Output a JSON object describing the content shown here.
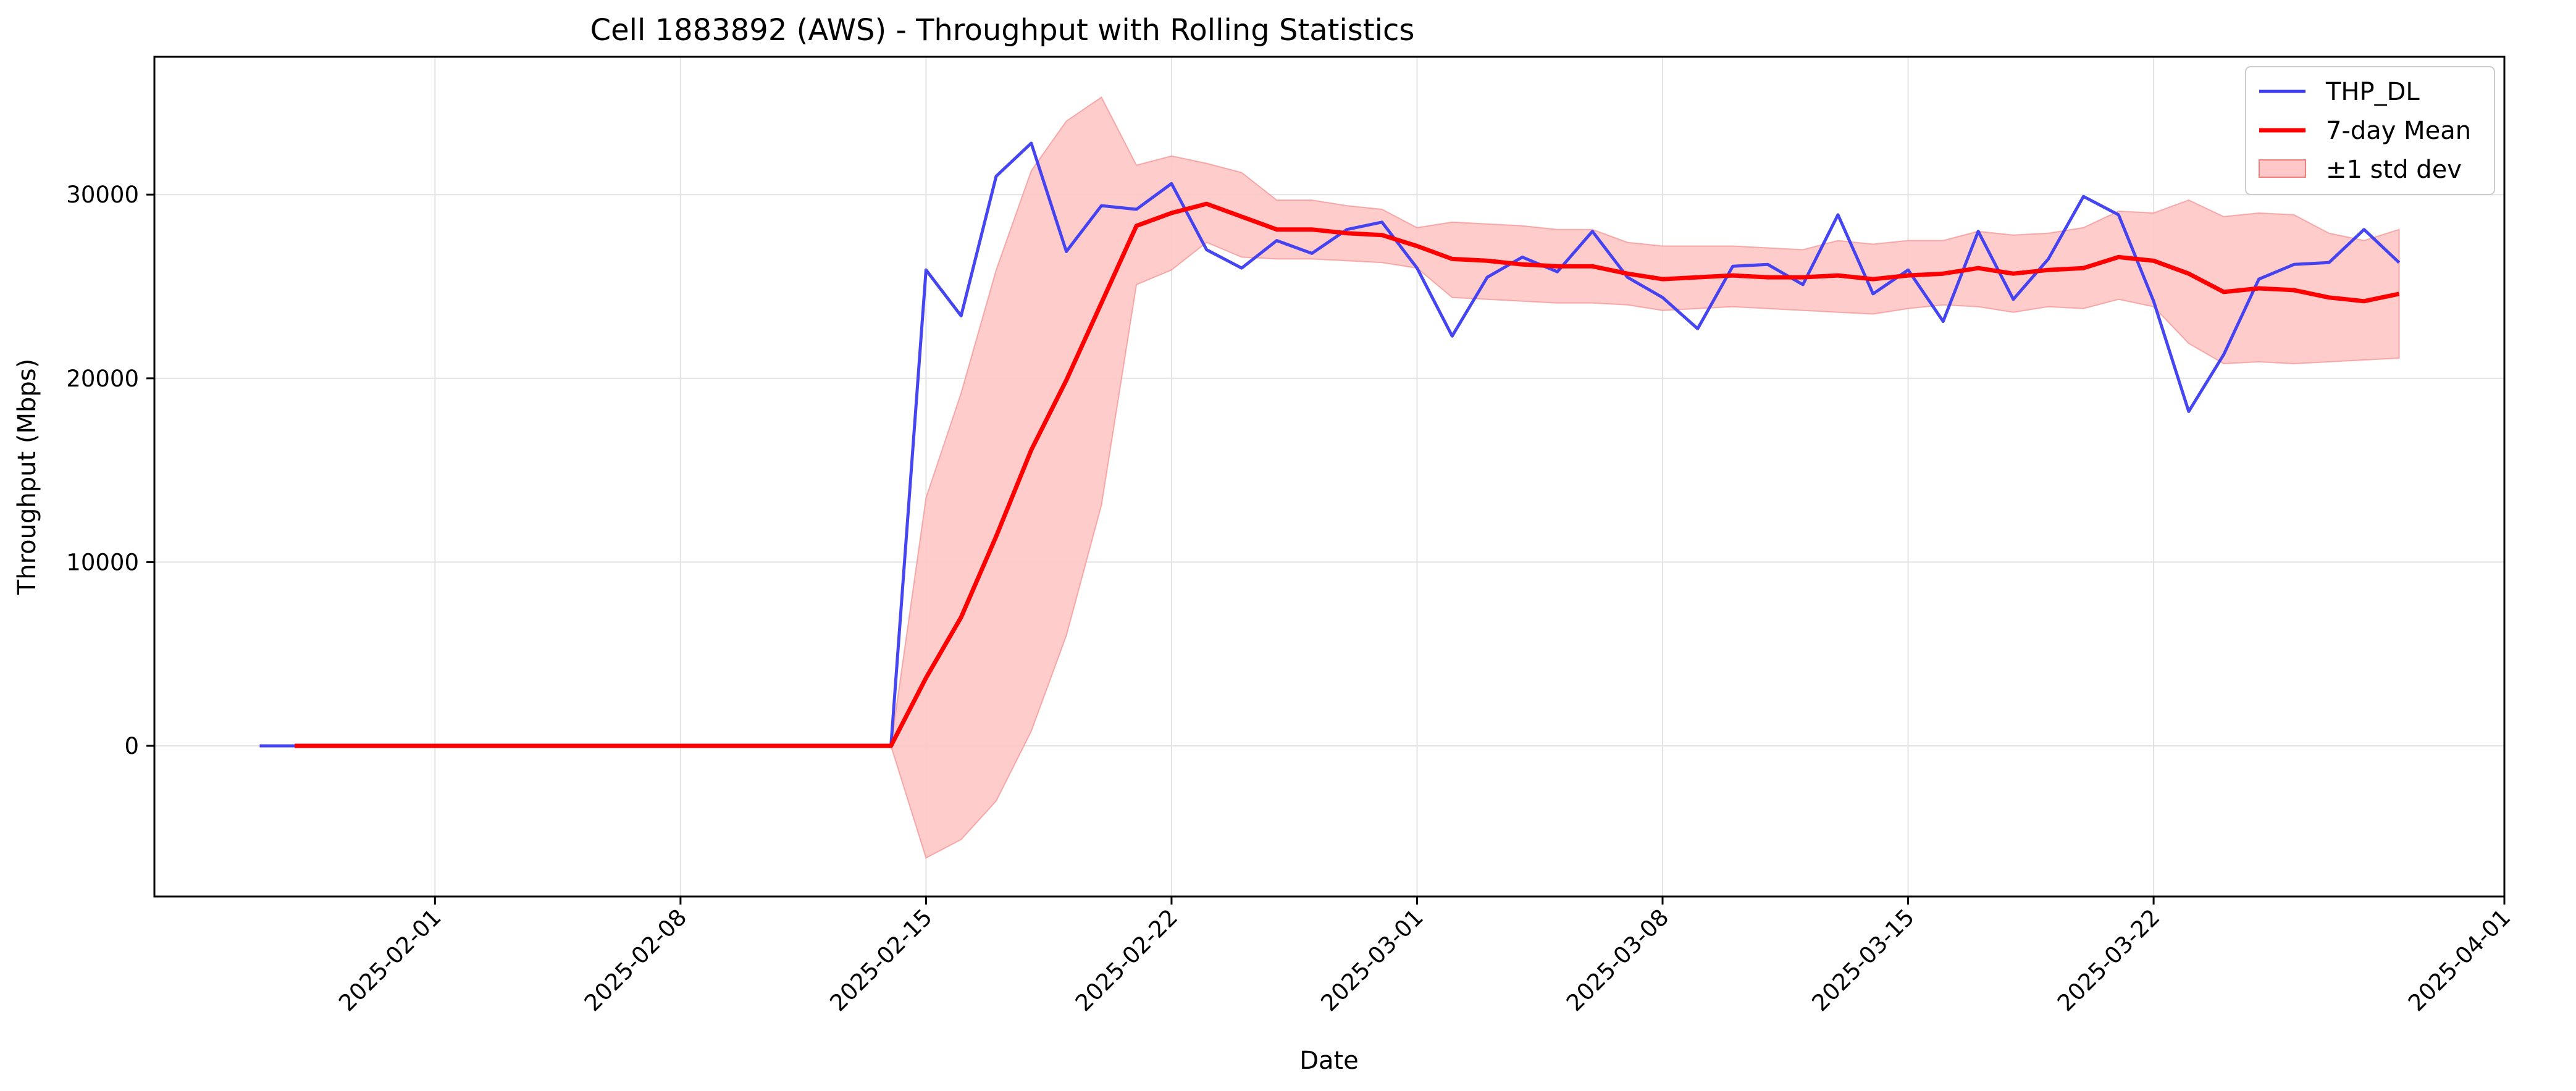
{
  "chart_data": {
    "type": "line",
    "title": "Cell 1883892 (AWS) - Throughput with Rolling Statistics",
    "xlabel": "Date",
    "ylabel": "Throughput (Mbps)",
    "xlim": [
      "2025-01-24",
      "2025-04-01"
    ],
    "ylim": [
      -8200,
      37500
    ],
    "grid": true,
    "legend_position": "top-right",
    "x_ticks": [
      "2025-02-01",
      "2025-02-08",
      "2025-02-15",
      "2025-02-22",
      "2025-03-01",
      "2025-03-08",
      "2025-03-15",
      "2025-03-22",
      "2025-04-01"
    ],
    "y_ticks": [
      0,
      10000,
      20000,
      30000
    ],
    "colors": {
      "THP_DL": "#3b3bf0",
      "mean": "#ff0000",
      "band_fill": "#ffc7c7",
      "band_edge": "#f08080",
      "grid": "#e3e3e3"
    },
    "series": [
      {
        "name": "THP_DL",
        "role": "line",
        "points": [
          [
            "2025-01-27",
            0
          ],
          [
            "2025-01-28",
            0
          ],
          [
            "2025-01-29",
            0
          ],
          [
            "2025-01-30",
            0
          ],
          [
            "2025-01-31",
            0
          ],
          [
            "2025-02-01",
            0
          ],
          [
            "2025-02-02",
            0
          ],
          [
            "2025-02-03",
            0
          ],
          [
            "2025-02-04",
            0
          ],
          [
            "2025-02-05",
            0
          ],
          [
            "2025-02-06",
            0
          ],
          [
            "2025-02-07",
            0
          ],
          [
            "2025-02-08",
            0
          ],
          [
            "2025-02-09",
            0
          ],
          [
            "2025-02-10",
            0
          ],
          [
            "2025-02-11",
            0
          ],
          [
            "2025-02-12",
            0
          ],
          [
            "2025-02-13",
            0
          ],
          [
            "2025-02-14",
            0
          ],
          [
            "2025-02-15",
            25900
          ],
          [
            "2025-02-16",
            23400
          ],
          [
            "2025-02-17",
            31000
          ],
          [
            "2025-02-18",
            32800
          ],
          [
            "2025-02-19",
            26900
          ],
          [
            "2025-02-20",
            29400
          ],
          [
            "2025-02-21",
            29200
          ],
          [
            "2025-02-22",
            30600
          ],
          [
            "2025-02-23",
            27000
          ],
          [
            "2025-02-24",
            26000
          ],
          [
            "2025-02-25",
            27500
          ],
          [
            "2025-02-26",
            26800
          ],
          [
            "2025-02-27",
            28100
          ],
          [
            "2025-02-28",
            28500
          ],
          [
            "2025-03-01",
            26000
          ],
          [
            "2025-03-02",
            22300
          ],
          [
            "2025-03-03",
            25500
          ],
          [
            "2025-03-04",
            26600
          ],
          [
            "2025-03-05",
            25800
          ],
          [
            "2025-03-06",
            28000
          ],
          [
            "2025-03-07",
            25500
          ],
          [
            "2025-03-08",
            24400
          ],
          [
            "2025-03-09",
            22700
          ],
          [
            "2025-03-10",
            26100
          ],
          [
            "2025-03-11",
            26200
          ],
          [
            "2025-03-12",
            25100
          ],
          [
            "2025-03-13",
            28900
          ],
          [
            "2025-03-14",
            24600
          ],
          [
            "2025-03-15",
            25900
          ],
          [
            "2025-03-16",
            23100
          ],
          [
            "2025-03-17",
            28000
          ],
          [
            "2025-03-18",
            24300
          ],
          [
            "2025-03-19",
            26500
          ],
          [
            "2025-03-20",
            29900
          ],
          [
            "2025-03-21",
            28900
          ],
          [
            "2025-03-22",
            24200
          ],
          [
            "2025-03-23",
            18200
          ],
          [
            "2025-03-24",
            21300
          ],
          [
            "2025-03-25",
            25400
          ],
          [
            "2025-03-26",
            26200
          ],
          [
            "2025-03-27",
            26300
          ],
          [
            "2025-03-28",
            28100
          ],
          [
            "2025-03-29",
            26300
          ]
        ]
      },
      {
        "name": "7-day Mean",
        "role": "line",
        "points": [
          [
            "2025-01-28",
            0
          ],
          [
            "2025-01-29",
            0
          ],
          [
            "2025-01-30",
            0
          ],
          [
            "2025-01-31",
            0
          ],
          [
            "2025-02-01",
            0
          ],
          [
            "2025-02-02",
            0
          ],
          [
            "2025-02-03",
            0
          ],
          [
            "2025-02-04",
            0
          ],
          [
            "2025-02-05",
            0
          ],
          [
            "2025-02-06",
            0
          ],
          [
            "2025-02-07",
            0
          ],
          [
            "2025-02-08",
            0
          ],
          [
            "2025-02-09",
            0
          ],
          [
            "2025-02-10",
            0
          ],
          [
            "2025-02-11",
            0
          ],
          [
            "2025-02-12",
            0
          ],
          [
            "2025-02-13",
            0
          ],
          [
            "2025-02-14",
            0
          ],
          [
            "2025-02-15",
            3700
          ],
          [
            "2025-02-16",
            7000
          ],
          [
            "2025-02-17",
            11400
          ],
          [
            "2025-02-18",
            16100
          ],
          [
            "2025-02-19",
            19900
          ],
          [
            "2025-02-20",
            24100
          ],
          [
            "2025-02-21",
            28300
          ],
          [
            "2025-02-22",
            29000
          ],
          [
            "2025-02-23",
            29500
          ],
          [
            "2025-02-24",
            28800
          ],
          [
            "2025-02-25",
            28100
          ],
          [
            "2025-02-26",
            28100
          ],
          [
            "2025-02-27",
            27900
          ],
          [
            "2025-02-28",
            27800
          ],
          [
            "2025-03-01",
            27200
          ],
          [
            "2025-03-02",
            26500
          ],
          [
            "2025-03-03",
            26400
          ],
          [
            "2025-03-04",
            26200
          ],
          [
            "2025-03-05",
            26100
          ],
          [
            "2025-03-06",
            26100
          ],
          [
            "2025-03-07",
            25700
          ],
          [
            "2025-03-08",
            25400
          ],
          [
            "2025-03-09",
            25500
          ],
          [
            "2025-03-10",
            25600
          ],
          [
            "2025-03-11",
            25500
          ],
          [
            "2025-03-12",
            25500
          ],
          [
            "2025-03-13",
            25600
          ],
          [
            "2025-03-14",
            25400
          ],
          [
            "2025-03-15",
            25600
          ],
          [
            "2025-03-16",
            25700
          ],
          [
            "2025-03-17",
            26000
          ],
          [
            "2025-03-18",
            25700
          ],
          [
            "2025-03-19",
            25900
          ],
          [
            "2025-03-20",
            26000
          ],
          [
            "2025-03-21",
            26600
          ],
          [
            "2025-03-22",
            26400
          ],
          [
            "2025-03-23",
            25700
          ],
          [
            "2025-03-24",
            24700
          ],
          [
            "2025-03-25",
            24900
          ],
          [
            "2025-03-26",
            24800
          ],
          [
            "2025-03-27",
            24400
          ],
          [
            "2025-03-28",
            24200
          ],
          [
            "2025-03-29",
            24600
          ]
        ]
      },
      {
        "name": "±1 std dev",
        "role": "band",
        "points": [
          [
            "2025-02-14",
            0,
            0
          ],
          [
            "2025-02-15",
            -6100,
            13500
          ],
          [
            "2025-02-16",
            -5100,
            19200
          ],
          [
            "2025-02-17",
            -3000,
            25900
          ],
          [
            "2025-02-18",
            800,
            31300
          ],
          [
            "2025-02-19",
            6000,
            34000
          ],
          [
            "2025-02-20",
            13100,
            35300
          ],
          [
            "2025-02-21",
            25100,
            31600
          ],
          [
            "2025-02-22",
            25900,
            32100
          ],
          [
            "2025-02-23",
            27400,
            31700
          ],
          [
            "2025-02-24",
            26600,
            31200
          ],
          [
            "2025-02-25",
            26500,
            29700
          ],
          [
            "2025-02-26",
            26500,
            29700
          ],
          [
            "2025-02-27",
            26400,
            29400
          ],
          [
            "2025-02-28",
            26300,
            29200
          ],
          [
            "2025-03-01",
            26000,
            28200
          ],
          [
            "2025-03-02",
            24400,
            28500
          ],
          [
            "2025-03-03",
            24300,
            28400
          ],
          [
            "2025-03-04",
            24200,
            28300
          ],
          [
            "2025-03-05",
            24100,
            28100
          ],
          [
            "2025-03-06",
            24100,
            28100
          ],
          [
            "2025-03-07",
            24000,
            27400
          ],
          [
            "2025-03-08",
            23700,
            27200
          ],
          [
            "2025-03-09",
            23800,
            27200
          ],
          [
            "2025-03-10",
            23900,
            27200
          ],
          [
            "2025-03-11",
            23800,
            27100
          ],
          [
            "2025-03-12",
            23700,
            27000
          ],
          [
            "2025-03-13",
            23600,
            27500
          ],
          [
            "2025-03-14",
            23500,
            27300
          ],
          [
            "2025-03-15",
            23800,
            27500
          ],
          [
            "2025-03-16",
            24000,
            27500
          ],
          [
            "2025-03-17",
            23900,
            28000
          ],
          [
            "2025-03-18",
            23600,
            27800
          ],
          [
            "2025-03-19",
            23900,
            27900
          ],
          [
            "2025-03-20",
            23800,
            28200
          ],
          [
            "2025-03-21",
            24300,
            29100
          ],
          [
            "2025-03-22",
            23900,
            29000
          ],
          [
            "2025-03-23",
            21900,
            29700
          ],
          [
            "2025-03-24",
            20800,
            28800
          ],
          [
            "2025-03-25",
            20900,
            29000
          ],
          [
            "2025-03-26",
            20800,
            28900
          ],
          [
            "2025-03-27",
            20900,
            27900
          ],
          [
            "2025-03-28",
            21000,
            27500
          ],
          [
            "2025-03-29",
            21100,
            28100
          ]
        ]
      }
    ]
  }
}
